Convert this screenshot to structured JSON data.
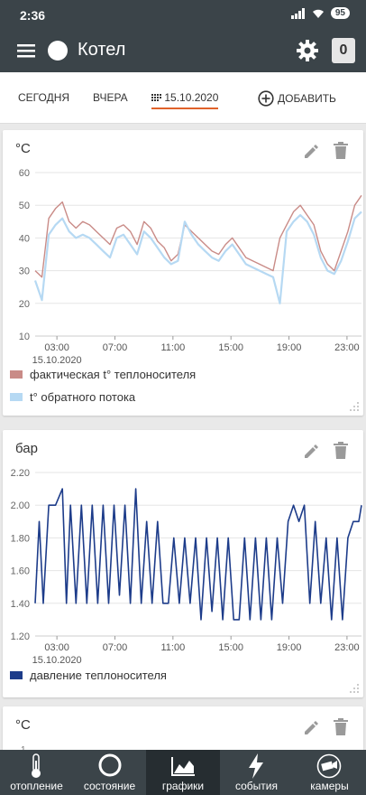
{
  "status": {
    "time": "2:36",
    "battery": "95"
  },
  "appbar": {
    "title": "Котел",
    "counter": "0"
  },
  "tabs": [
    {
      "label": "СЕГОДНЯ"
    },
    {
      "label": "ВЧЕРА"
    },
    {
      "label": "15.10.2020"
    }
  ],
  "add_label": "ДОБАВИТЬ",
  "cards": [
    {
      "unit": "°C"
    },
    {
      "unit": "бар"
    },
    {
      "unit": "°C"
    }
  ],
  "chart_data": [
    {
      "type": "line",
      "ylim": [
        10,
        60
      ],
      "y_ticks": [
        "60",
        "50",
        "40",
        "30",
        "20",
        "10"
      ],
      "x_ticks": [
        "03:00",
        "07:00",
        "11:00",
        "15:00",
        "19:00",
        "23:00"
      ],
      "x_sub": "15.10.2020",
      "series": [
        {
          "name": "фактическая t° теплоносителя",
          "color": "#c98b87",
          "x": [
            0.0,
            0.5,
            1.0,
            1.5,
            2.0,
            2.5,
            3.0,
            3.5,
            4.0,
            4.5,
            5.0,
            5.5,
            6.0,
            6.5,
            7.0,
            7.5,
            8.0,
            8.5,
            9.0,
            9.5,
            10.0,
            10.5,
            11.0,
            11.5,
            12.0,
            12.5,
            13.0,
            13.5,
            14.0,
            14.5,
            15.0,
            15.5,
            16.0,
            16.5,
            17.0,
            17.5,
            18.0,
            18.5,
            19.0,
            19.5,
            20.0,
            20.5,
            21.0,
            21.5,
            22.0,
            22.5,
            23.0,
            23.5,
            24.0
          ],
          "y": [
            30,
            28,
            46,
            49,
            51,
            45,
            43,
            45,
            44,
            42,
            40,
            38,
            43,
            44,
            42,
            38,
            45,
            43,
            39,
            37,
            33,
            35,
            44,
            42,
            40,
            38,
            36,
            35,
            38,
            40,
            37,
            34,
            33,
            32,
            31,
            30,
            40,
            44,
            48,
            50,
            47,
            44,
            36,
            32,
            30,
            36,
            42,
            50,
            53
          ]
        },
        {
          "name": "t° обратного потока",
          "color": "#b6d9f3",
          "x": [
            0.0,
            0.5,
            1.0,
            1.5,
            2.0,
            2.5,
            3.0,
            3.5,
            4.0,
            4.5,
            5.0,
            5.5,
            6.0,
            6.5,
            7.0,
            7.5,
            8.0,
            8.5,
            9.0,
            9.5,
            10.0,
            10.5,
            11.0,
            11.5,
            12.0,
            12.5,
            13.0,
            13.5,
            14.0,
            14.5,
            15.0,
            15.5,
            16.0,
            16.5,
            17.0,
            17.5,
            18.0,
            18.5,
            19.0,
            19.5,
            20.0,
            20.5,
            21.0,
            21.5,
            22.0,
            22.5,
            23.0,
            23.5,
            24.0
          ],
          "y": [
            27,
            21,
            41,
            44,
            46,
            42,
            40,
            41,
            40,
            38,
            36,
            34,
            40,
            41,
            38,
            35,
            42,
            40,
            37,
            34,
            32,
            33,
            45,
            41,
            38,
            36,
            34,
            33,
            36,
            38,
            35,
            32,
            31,
            30,
            29,
            28,
            20,
            42,
            45,
            47,
            45,
            41,
            34,
            30,
            29,
            33,
            39,
            46,
            48
          ]
        }
      ]
    },
    {
      "type": "line",
      "ylim": [
        1.2,
        2.2
      ],
      "y_ticks": [
        "2.20",
        "2.00",
        "1.80",
        "1.60",
        "1.40",
        "1.20"
      ],
      "x_ticks": [
        "03:00",
        "07:00",
        "11:00",
        "15:00",
        "19:00",
        "23:00"
      ],
      "x_sub": "15.10.2020",
      "series": [
        {
          "name": "давление теплоносителя",
          "color": "#1d3c8a",
          "x": [
            0.0,
            0.3,
            0.6,
            1.0,
            1.5,
            2.0,
            2.3,
            2.6,
            3.0,
            3.4,
            3.8,
            4.2,
            4.6,
            5.0,
            5.4,
            5.8,
            6.2,
            6.6,
            7.0,
            7.4,
            7.8,
            8.2,
            8.6,
            9.0,
            9.4,
            9.8,
            10.2,
            10.6,
            11.0,
            11.4,
            11.8,
            12.2,
            12.6,
            13.0,
            13.4,
            13.8,
            14.2,
            14.6,
            15.0,
            15.4,
            15.8,
            16.2,
            16.6,
            17.0,
            17.4,
            17.8,
            18.2,
            18.6,
            19.0,
            19.4,
            19.8,
            20.2,
            20.6,
            21.0,
            21.4,
            21.8,
            22.2,
            22.6,
            23.0,
            23.4,
            23.8,
            24.0
          ],
          "y": [
            1.4,
            1.9,
            1.4,
            2.0,
            2.0,
            2.1,
            1.4,
            2.0,
            1.4,
            2.0,
            1.4,
            2.0,
            1.4,
            2.0,
            1.4,
            2.0,
            1.45,
            2.0,
            1.4,
            2.1,
            1.4,
            1.9,
            1.4,
            1.9,
            1.4,
            1.4,
            1.8,
            1.4,
            1.8,
            1.4,
            1.8,
            1.3,
            1.8,
            1.35,
            1.8,
            1.3,
            1.8,
            1.3,
            1.3,
            1.8,
            1.3,
            1.8,
            1.3,
            1.8,
            1.3,
            1.8,
            1.4,
            1.9,
            2.0,
            1.9,
            2.0,
            1.4,
            1.9,
            1.4,
            1.8,
            1.3,
            1.8,
            1.3,
            1.8,
            1.9,
            1.9,
            2.0
          ]
        }
      ]
    },
    {
      "type": "line",
      "y_ticks": [
        "1"
      ]
    }
  ],
  "nav": [
    {
      "label": "отопление"
    },
    {
      "label": "состояние"
    },
    {
      "label": "графики"
    },
    {
      "label": "события"
    },
    {
      "label": "камеры"
    }
  ]
}
